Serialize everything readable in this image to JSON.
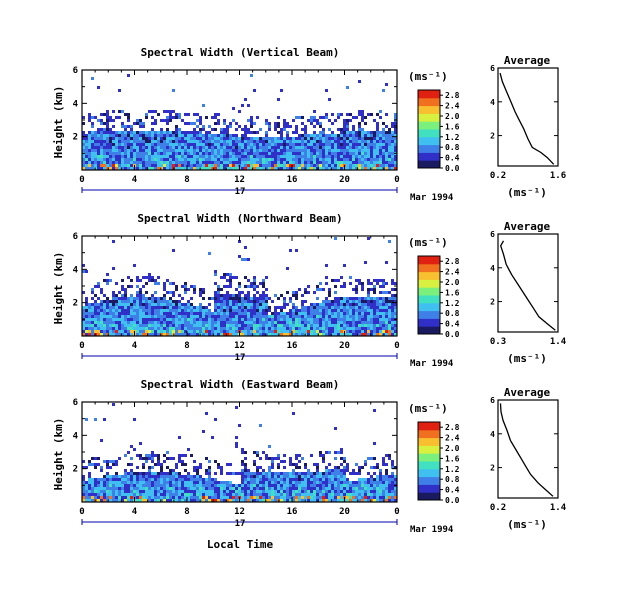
{
  "figure": {
    "xlabel": "Local Time",
    "date_label": "Mar 1994",
    "day_label": "17",
    "colorbar_unit": "(ms⁻¹)",
    "avg_xlabel": "(ms⁻¹)",
    "avg_title": "Average",
    "ylabel": "Height (km)"
  },
  "colors": {
    "scale": [
      "#1a1a60",
      "#3030c8",
      "#3f7fe8",
      "#40c0f0",
      "#40e0c0",
      "#7cf07c",
      "#d8f040",
      "#f8c030",
      "#f07020",
      "#e02010"
    ]
  },
  "chart_data": [
    {
      "type": "heatmap",
      "title": "Spectral Width (Vertical Beam)",
      "x_ticks": [
        "0",
        "4",
        "8",
        "12",
        "16",
        "20",
        "0"
      ],
      "x_range": [
        0,
        24
      ],
      "y_ticks": [
        "2",
        "4",
        "6"
      ],
      "y_range": [
        0,
        6
      ],
      "colorbar": {
        "ticks": [
          "0.0",
          "0.4",
          "0.8",
          "1.2",
          "1.6",
          "2.0",
          "2.4",
          "2.8"
        ],
        "range": [
          0,
          3.0
        ]
      },
      "profile": {
        "title": "Average",
        "x_ticks": [
          "0.2",
          "1.6"
        ],
        "x_range": [
          0.2,
          1.6
        ],
        "y_ticks": [
          "2",
          "4",
          "6"
        ],
        "y_range": [
          0.2,
          6
        ],
        "points": [
          [
            1.5,
            0.3
          ],
          [
            1.35,
            0.7
          ],
          [
            1.2,
            1.0
          ],
          [
            1.0,
            1.3
          ],
          [
            0.9,
            1.8
          ],
          [
            0.8,
            2.4
          ],
          [
            0.7,
            2.9
          ],
          [
            0.6,
            3.4
          ],
          [
            0.5,
            4.0
          ],
          [
            0.4,
            4.6
          ],
          [
            0.3,
            5.2
          ],
          [
            0.25,
            5.7
          ]
        ]
      }
    },
    {
      "type": "heatmap",
      "title": "Spectral Width (Northward Beam)",
      "x_ticks": [
        "0",
        "4",
        "8",
        "12",
        "16",
        "20",
        "0"
      ],
      "x_range": [
        0,
        24
      ],
      "y_ticks": [
        "2",
        "4",
        "6"
      ],
      "y_range": [
        0,
        6
      ],
      "colorbar": {
        "ticks": [
          "0.0",
          "0.4",
          "0.8",
          "1.2",
          "1.6",
          "2.0",
          "2.4",
          "2.8"
        ],
        "range": [
          0,
          3.0
        ]
      },
      "profile": {
        "title": "Average",
        "x_ticks": [
          "0.3",
          "1.4"
        ],
        "x_range": [
          0.3,
          1.4
        ],
        "y_ticks": [
          "2",
          "4",
          "6"
        ],
        "y_range": [
          0.2,
          6
        ],
        "points": [
          [
            1.35,
            0.3
          ],
          [
            1.2,
            0.7
          ],
          [
            1.05,
            1.1
          ],
          [
            0.95,
            1.6
          ],
          [
            0.85,
            2.1
          ],
          [
            0.75,
            2.6
          ],
          [
            0.65,
            3.1
          ],
          [
            0.55,
            3.6
          ],
          [
            0.45,
            4.2
          ],
          [
            0.4,
            4.8
          ],
          [
            0.35,
            5.3
          ],
          [
            0.4,
            5.6
          ]
        ]
      }
    },
    {
      "type": "heatmap",
      "title": "Spectral Width (Eastward Beam)",
      "x_ticks": [
        "0",
        "4",
        "8",
        "12",
        "16",
        "20",
        "0"
      ],
      "x_range": [
        0,
        24
      ],
      "y_ticks": [
        "2",
        "4",
        "6"
      ],
      "y_range": [
        0,
        6
      ],
      "colorbar": {
        "ticks": [
          "0.0",
          "0.4",
          "0.8",
          "1.2",
          "1.6",
          "2.0",
          "2.4",
          "2.8"
        ],
        "range": [
          0,
          3.0
        ]
      },
      "profile": {
        "title": "Average",
        "x_ticks": [
          "0.2",
          "1.4"
        ],
        "x_range": [
          0.2,
          1.4
        ],
        "y_ticks": [
          "2",
          "4",
          "6"
        ],
        "y_range": [
          0.2,
          6
        ],
        "points": [
          [
            1.3,
            0.3
          ],
          [
            1.15,
            0.7
          ],
          [
            1.0,
            1.1
          ],
          [
            0.85,
            1.6
          ],
          [
            0.75,
            2.1
          ],
          [
            0.65,
            2.6
          ],
          [
            0.55,
            3.1
          ],
          [
            0.45,
            3.6
          ],
          [
            0.38,
            4.2
          ],
          [
            0.3,
            4.8
          ],
          [
            0.26,
            5.3
          ],
          [
            0.25,
            5.8
          ]
        ]
      }
    }
  ]
}
